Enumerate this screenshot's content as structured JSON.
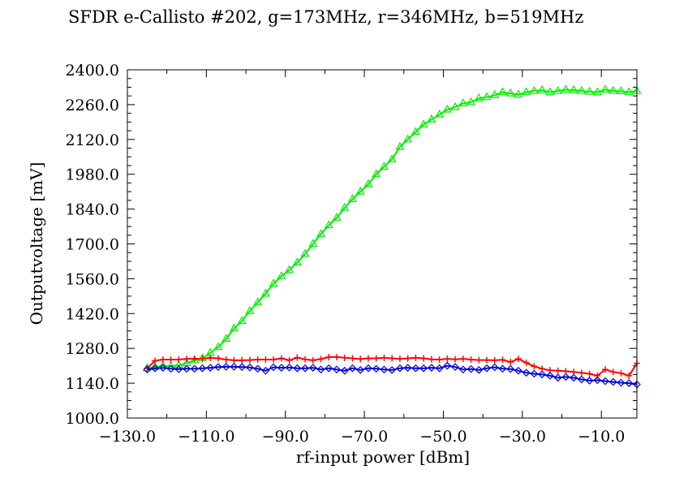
{
  "chart_data": {
    "type": "line",
    "title": "SFDR e-Callisto #202, g=173MHz, r=346MHz, b=519MHz",
    "xlabel": "rf-input power [dBm]",
    "ylabel": "Outputvoltage [mV]",
    "xlim": [
      -130,
      -1
    ],
    "ylim": [
      1000,
      2400
    ],
    "x_ticks": [
      -130,
      -110,
      -90,
      -70,
      -50,
      -30,
      -10
    ],
    "x_tick_labels": [
      "−130.0",
      "−110.0",
      "−90.0",
      "−70.0",
      "−50.0",
      "−30.0",
      "−10.0"
    ],
    "y_ticks": [
      1000,
      1140,
      1280,
      1420,
      1560,
      1700,
      1840,
      1980,
      2120,
      2260,
      2400
    ],
    "y_tick_labels": [
      "1000.0",
      "1140.0",
      "1280.0",
      "1420.0",
      "1560.0",
      "1700.0",
      "1840.0",
      "1980.0",
      "2120.0",
      "2260.0",
      "2400.0"
    ],
    "grid": false,
    "legend": "none",
    "series": [
      {
        "color": "#00ee00",
        "marker": "triangle",
        "x": [
          -125,
          -123,
          -121,
          -119,
          -117,
          -115,
          -113,
          -111,
          -109,
          -107,
          -105,
          -103,
          -101,
          -99,
          -97,
          -95,
          -93,
          -91,
          -89,
          -87,
          -85,
          -83,
          -81,
          -79,
          -77,
          -75,
          -73,
          -71,
          -69,
          -67,
          -65,
          -63,
          -61,
          -59,
          -57,
          -55,
          -53,
          -51,
          -49,
          -47,
          -45,
          -43,
          -41,
          -39,
          -37,
          -35,
          -33,
          -31,
          -29,
          -27,
          -25,
          -23,
          -21,
          -19,
          -17,
          -15,
          -13,
          -11,
          -9,
          -7,
          -5,
          -3,
          -1
        ],
        "y": [
          1200,
          1205,
          1210,
          1208,
          1212,
          1220,
          1232,
          1240,
          1262,
          1285,
          1318,
          1360,
          1390,
          1430,
          1465,
          1500,
          1540,
          1570,
          1595,
          1625,
          1660,
          1700,
          1740,
          1775,
          1805,
          1845,
          1880,
          1910,
          1940,
          1980,
          2010,
          2040,
          2090,
          2120,
          2150,
          2180,
          2200,
          2220,
          2240,
          2250,
          2265,
          2270,
          2285,
          2290,
          2298,
          2310,
          2305,
          2300,
          2310,
          2315,
          2318,
          2310,
          2315,
          2320,
          2318,
          2315,
          2312,
          2310,
          2320,
          2315,
          2314,
          2310,
          2315
        ]
      },
      {
        "color": "#ff0000",
        "marker": "plus",
        "x": [
          -125,
          -123,
          -121,
          -119,
          -117,
          -115,
          -113,
          -111,
          -109,
          -107,
          -105,
          -103,
          -101,
          -99,
          -97,
          -95,
          -93,
          -91,
          -89,
          -87,
          -85,
          -83,
          -81,
          -79,
          -77,
          -75,
          -73,
          -71,
          -69,
          -67,
          -65,
          -63,
          -61,
          -59,
          -57,
          -55,
          -53,
          -51,
          -49,
          -47,
          -45,
          -43,
          -41,
          -39,
          -37,
          -35,
          -33,
          -31,
          -29,
          -27,
          -25,
          -23,
          -21,
          -19,
          -17,
          -15,
          -13,
          -11,
          -9,
          -7,
          -5,
          -3,
          -1
        ],
        "y": [
          1200,
          1230,
          1235,
          1235,
          1235,
          1238,
          1238,
          1238,
          1242,
          1240,
          1235,
          1232,
          1232,
          1233,
          1235,
          1235,
          1235,
          1240,
          1232,
          1243,
          1236,
          1232,
          1237,
          1245,
          1245,
          1242,
          1240,
          1237,
          1240,
          1240,
          1242,
          1240,
          1238,
          1240,
          1242,
          1240,
          1236,
          1235,
          1238,
          1236,
          1238,
          1235,
          1233,
          1233,
          1232,
          1234,
          1225,
          1238,
          1222,
          1208,
          1198,
          1192,
          1190,
          1188,
          1185,
          1182,
          1178,
          1170,
          1195,
          1185,
          1180,
          1170,
          1220
        ]
      },
      {
        "color": "#0000dd",
        "marker": "diamond",
        "x": [
          -125,
          -123,
          -121,
          -119,
          -117,
          -115,
          -113,
          -111,
          -109,
          -107,
          -105,
          -103,
          -101,
          -99,
          -97,
          -95,
          -93,
          -91,
          -89,
          -87,
          -85,
          -83,
          -81,
          -79,
          -77,
          -75,
          -73,
          -71,
          -69,
          -67,
          -65,
          -63,
          -61,
          -59,
          -57,
          -55,
          -53,
          -51,
          -49,
          -47,
          -45,
          -43,
          -41,
          -39,
          -37,
          -35,
          -33,
          -31,
          -29,
          -27,
          -25,
          -23,
          -21,
          -19,
          -17,
          -15,
          -13,
          -11,
          -9,
          -7,
          -5,
          -3,
          -1
        ],
        "y": [
          1195,
          1200,
          1202,
          1198,
          1196,
          1198,
          1198,
          1200,
          1202,
          1205,
          1206,
          1206,
          1205,
          1203,
          1198,
          1190,
          1204,
          1202,
          1203,
          1200,
          1200,
          1202,
          1195,
          1200,
          1195,
          1190,
          1200,
          1193,
          1200,
          1198,
          1195,
          1193,
          1200,
          1202,
          1200,
          1200,
          1202,
          1200,
          1210,
          1205,
          1195,
          1197,
          1193,
          1200,
          1204,
          1198,
          1197,
          1190,
          1182,
          1178,
          1175,
          1170,
          1162,
          1165,
          1162,
          1155,
          1150,
          1152,
          1148,
          1145,
          1142,
          1140,
          1135
        ]
      }
    ]
  }
}
